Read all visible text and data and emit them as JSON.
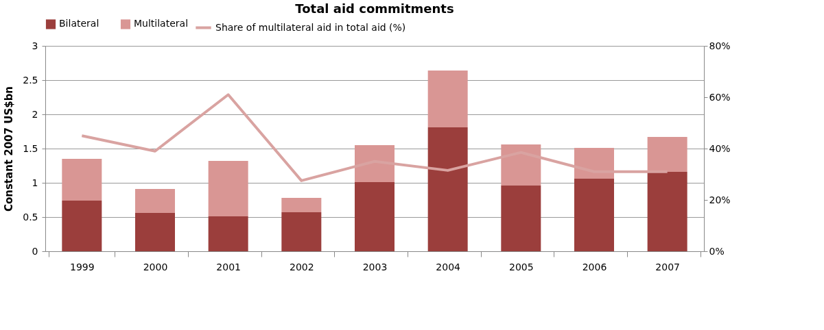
{
  "chart_data": {
    "type": "bar",
    "title": "Total aid commitments",
    "ylabel": "Constant 2007 US$bn",
    "categories": [
      "1999",
      "2000",
      "2001",
      "2002",
      "2003",
      "2004",
      "2005",
      "2006",
      "2007"
    ],
    "stacked": true,
    "series": [
      {
        "name": "Bilateral",
        "color": "#9b3e3c",
        "values": [
          0.74,
          0.56,
          0.51,
          0.57,
          1.01,
          1.81,
          0.96,
          1.06,
          1.16
        ]
      },
      {
        "name": "Multilateral",
        "color": "#d99694",
        "values": [
          0.61,
          0.35,
          0.81,
          0.21,
          0.54,
          0.83,
          0.6,
          0.45,
          0.51
        ]
      },
      {
        "name": "Share of multilateral  aid in total aid (%)",
        "type": "line",
        "axis": "y2",
        "color": "#d9a3a1",
        "values": [
          45,
          39,
          61,
          27.5,
          35,
          31.5,
          38.5,
          31,
          31
        ]
      }
    ],
    "ylim": [
      0,
      3
    ],
    "yticks": [
      0,
      0.5,
      1,
      1.5,
      2,
      2.5,
      3
    ],
    "y2lim": [
      0,
      80
    ],
    "y2ticks": [
      {
        "value": 0,
        "label": "0%"
      },
      {
        "value": 20,
        "label": "20%"
      },
      {
        "value": 40,
        "label": "40%"
      },
      {
        "value": 60,
        "label": "60%"
      },
      {
        "value": 80,
        "label": "80%"
      }
    ],
    "grid": "y",
    "legend": "top"
  }
}
